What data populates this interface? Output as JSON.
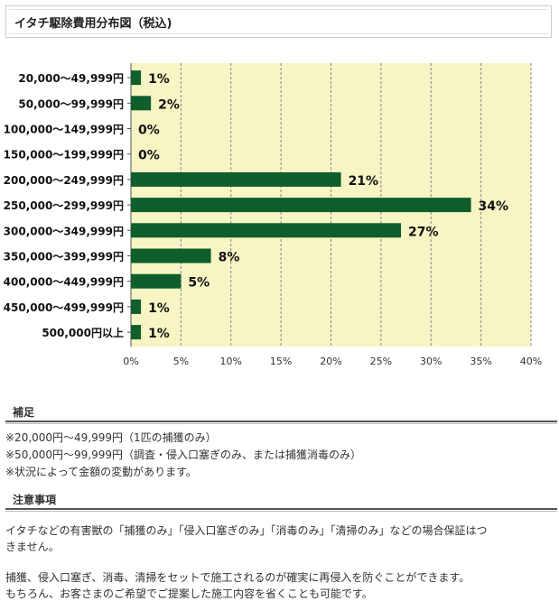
{
  "title": "イタチ駆除費用分布図（税込)",
  "chart_data": {
    "type": "bar",
    "orientation": "horizontal",
    "title": "イタチ駆除費用分布図（税込)",
    "categories": [
      "20,000～49,999円",
      "50,000～99,999円",
      "100,000～149,999円",
      "150,000～199,999円",
      "200,000～249,999円",
      "250,000～299,999円",
      "300,000～349,999円",
      "350,000～399,999円",
      "400,000～449,999円",
      "450,000～499,999円",
      "500,000円以上"
    ],
    "values": [
      1,
      2,
      0,
      0,
      21,
      34,
      27,
      8,
      5,
      1,
      1
    ],
    "value_labels": [
      "1%",
      "2%",
      "0%",
      "0%",
      "21%",
      "34%",
      "27%",
      "8%",
      "5%",
      "1%",
      "1%"
    ],
    "xlim": [
      0,
      40
    ],
    "xticks": [
      "0%",
      "5%",
      "10%",
      "15%",
      "20%",
      "25%",
      "30%",
      "35%",
      "40%"
    ],
    "grid": true,
    "colors": {
      "bar": "#0f5e2b",
      "plot_bg": "#f7f5c4",
      "grid": "#888888"
    }
  },
  "supplement": {
    "heading": "補足",
    "lines": [
      "※20,000円～49,999円（1匹の捕獲のみ）",
      "※50,000円～99,999円（調査・侵入口塞ぎのみ、または捕獲消毒のみ）",
      "※状況によって金額の変動があります。"
    ]
  },
  "caution": {
    "heading": "注意事項",
    "lines": [
      "イタチなどの有害獣の「捕獲のみ」「侵入口塞ぎのみ」「消毒のみ」「清掃のみ」などの場合保証はつ",
      "きません。",
      "",
      "捕獲、侵入口塞ぎ、消毒、清掃をセットで施工されるのが確実に再侵入を防ぐことができます。",
      "もちろん、お客さまのご希望でご提案した施工内容を省くことも可能です。"
    ]
  }
}
